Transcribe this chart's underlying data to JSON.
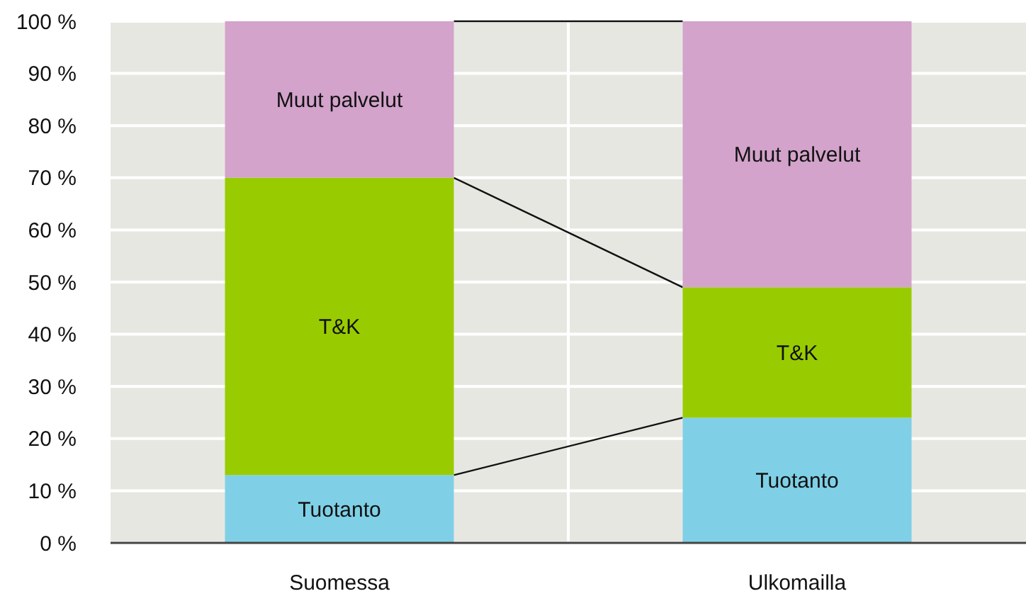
{
  "chart_data": {
    "type": "bar",
    "stacked": true,
    "categories": [
      "Suomessa",
      "Ulkomailla"
    ],
    "series": [
      {
        "name": "Tuotanto",
        "color": "#7fd0e6",
        "values": [
          13,
          24
        ]
      },
      {
        "name": "T&K",
        "color": "#99cc00",
        "values": [
          57,
          25
        ]
      },
      {
        "name": "Muut palvelut",
        "color": "#d3a3cb",
        "values": [
          30,
          51
        ]
      }
    ],
    "ylim": [
      0,
      100
    ],
    "yticks": [
      {
        "value": 0,
        "label": "0 %"
      },
      {
        "value": 10,
        "label": "10 %"
      },
      {
        "value": 20,
        "label": "20 %"
      },
      {
        "value": 30,
        "label": "30 %"
      },
      {
        "value": 40,
        "label": "40 %"
      },
      {
        "value": 50,
        "label": "50 %"
      },
      {
        "value": 60,
        "label": "60 %"
      },
      {
        "value": 70,
        "label": "70 %"
      },
      {
        "value": 80,
        "label": "80 %"
      },
      {
        "value": 90,
        "label": "90 %"
      },
      {
        "value": 100,
        "label": "100 %"
      }
    ],
    "grid": true
  }
}
